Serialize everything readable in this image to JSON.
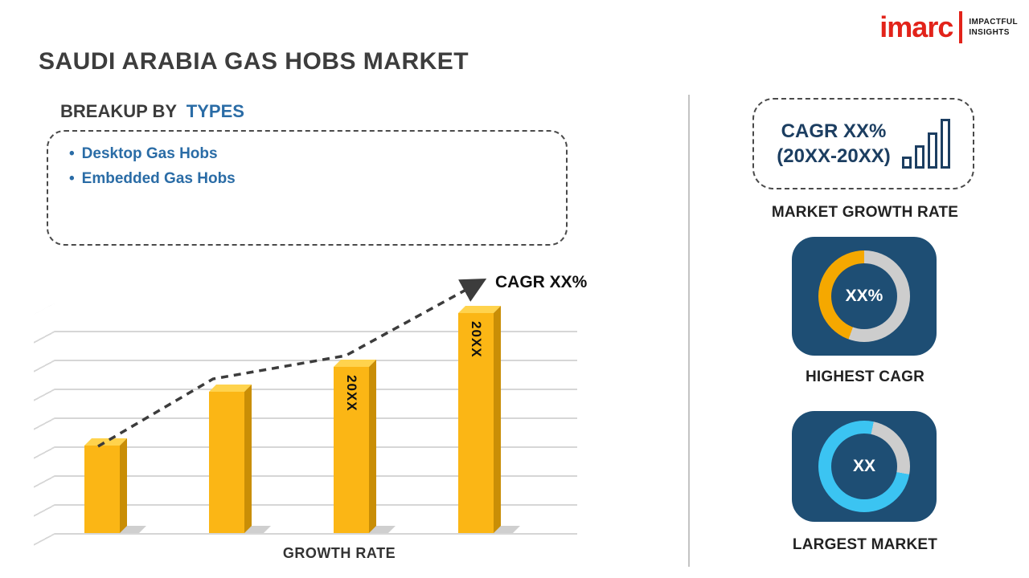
{
  "logo": {
    "brand": "imarc",
    "tagline1": "IMPACTFUL",
    "tagline2": "INSIGHTS",
    "brand_color": "#e2231a"
  },
  "title": "SAUDI ARABIA GAS HOBS MARKET",
  "breakup": {
    "heading_prefix": "BREAKUP BY",
    "heading_highlight": "TYPES",
    "items": [
      "Desktop Gas Hobs",
      "Embedded Gas Hobs"
    ]
  },
  "chart_data": [
    {
      "type": "bar",
      "title": "",
      "categories": [
        "",
        "",
        "20XX",
        "20XX"
      ],
      "values": [
        38,
        61,
        72,
        95
      ],
      "ylim": [
        0,
        100
      ],
      "xlabel": "GROWTH RATE",
      "ylabel": "",
      "annotation": "CAGR XX%",
      "bar_color": "#FBB615",
      "trend": "dashed-arrow-up",
      "grid": true,
      "legend": "none"
    },
    {
      "type": "pie",
      "variant": "donut",
      "label": "XX%",
      "caption": "HIGHEST CAGR",
      "segments": [
        {
          "name": "remainder",
          "color": "#CDCDCD",
          "start": 0,
          "end": 200
        },
        {
          "name": "cagr-share",
          "color": "#F5A800",
          "start": 200,
          "end": 360
        }
      ]
    },
    {
      "type": "pie",
      "variant": "donut",
      "label": "XX",
      "caption": "LARGEST MARKET",
      "segments": [
        {
          "name": "market-share",
          "color": "#3BC4F2",
          "start": 0,
          "end": 12
        },
        {
          "name": "remainder",
          "color": "#CDCDCD",
          "start": 12,
          "end": 100
        },
        {
          "name": "market-share",
          "color": "#3BC4F2",
          "start": 100,
          "end": 360
        }
      ]
    }
  ],
  "right_panel": {
    "cagr_box": {
      "line1": "CAGR XX%",
      "line2": "(20XX-20XX)"
    },
    "growth_caption": "MARKET GROWTH RATE",
    "highest_cagr_caption": "HIGHEST CAGR",
    "largest_market_caption": "LARGEST MARKET"
  },
  "colors": {
    "accent_blue": "#2a6ca6",
    "navy_tile": "#1E4E74",
    "bar_gold": "#FBB615",
    "donut_gold": "#F5A800",
    "donut_cyan": "#3BC4F2",
    "donut_gray": "#CDCDCD",
    "brand_red": "#e2231a"
  }
}
